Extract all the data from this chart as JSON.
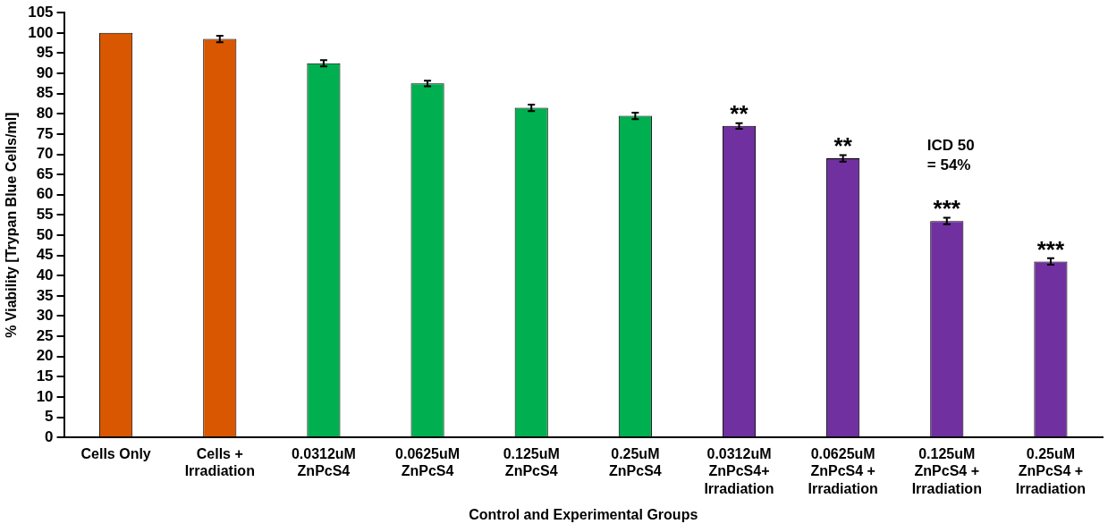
{
  "chart_data": {
    "type": "bar",
    "xlabel": "Control and Experimental Groups",
    "ylabel": "% Viability [Trypan Blue Cells/ml]",
    "categories": [
      "Cells Only",
      "Cells +\nIrradiation",
      "0.0312uM\nZnPcS4",
      "0.0625uM\nZnPcS4",
      "0.125uM\nZnPcS4",
      "0.25uM\nZnPcS4",
      "0.0312uM\nZnPcS4+\nIrradiation",
      "0.0625uM\nZnPcS4 +\nIrradiation",
      "0.125uM\nZnPcS4 +\nIrradiation",
      "0.25uM\nZnPcS4 +\nIrradiation"
    ],
    "values": [
      100,
      98.5,
      92.5,
      87.5,
      81.5,
      79.5,
      77,
      69,
      53.5,
      43.5
    ],
    "errors": [
      null,
      0.8,
      0.8,
      0.7,
      0.8,
      0.8,
      0.7,
      0.8,
      0.8,
      0.8
    ],
    "colors": [
      "#d95700",
      "#d95700",
      "#00b050",
      "#00b050",
      "#00b050",
      "#00b050",
      "#7030a0",
      "#7030a0",
      "#7030a0",
      "#7030a0"
    ],
    "ylim": [
      0,
      105
    ],
    "yticks": [
      0,
      5,
      10,
      15,
      20,
      25,
      30,
      35,
      40,
      45,
      50,
      55,
      60,
      65,
      70,
      75,
      80,
      85,
      90,
      95,
      100,
      105
    ],
    "grid": false,
    "legend": false,
    "annotations": [
      {
        "text": "**",
        "x": "0.0312uM\nZnPcS4+\nIrradiation",
        "y": 77
      },
      {
        "text": "**",
        "x": "0.0625uM\nZnPcS4 +\nIrradiation",
        "y": 69
      },
      {
        "text": "***",
        "x": "0.125uM\nZnPcS4 +\nIrradiation",
        "y": 53.5
      },
      {
        "text": "***",
        "x": "0.25uM\nZnPcS4 +\nIrradiation",
        "y": 43.5
      },
      "ICD 50\n= 54%"
    ]
  }
}
